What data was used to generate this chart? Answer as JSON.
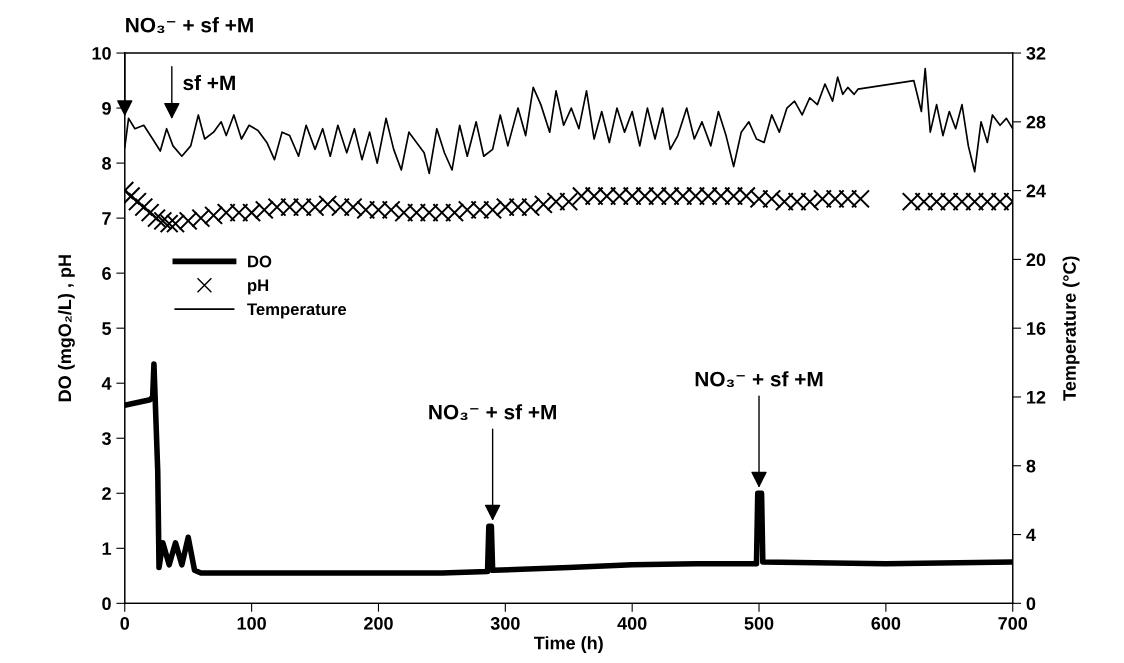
{
  "chart_data": {
    "type": "line",
    "xlabel": "Time (h)",
    "ylabel": "DO (mgO₂/L) , pH",
    "y2label": "Temperature (°C)",
    "xlim": [
      0,
      700
    ],
    "xticks": [
      0,
      100,
      200,
      300,
      400,
      500,
      600,
      700
    ],
    "ylim": [
      0,
      10
    ],
    "yticks": [
      0,
      1,
      2,
      3,
      4,
      5,
      6,
      7,
      8,
      9,
      10
    ],
    "y2lim": [
      0,
      32
    ],
    "y2ticks": [
      0,
      4,
      8,
      12,
      16,
      20,
      24,
      28,
      32
    ],
    "grid": false,
    "legend": "left",
    "series": [
      {
        "name": "DO",
        "color": "#000000",
        "x": [
          0,
          10,
          20,
          22,
          23,
          24,
          26,
          27,
          30,
          35,
          40,
          45,
          50,
          55,
          60,
          100,
          150,
          200,
          250,
          286,
          287,
          289,
          290,
          350,
          400,
          450,
          498,
          499,
          502,
          503,
          600,
          700
        ],
        "values": [
          3.6,
          3.65,
          3.7,
          3.75,
          4.35,
          3.7,
          2.4,
          0.65,
          1.1,
          0.7,
          1.1,
          0.7,
          1.2,
          0.6,
          0.55,
          0.55,
          0.55,
          0.55,
          0.55,
          0.58,
          1.4,
          1.4,
          0.6,
          0.65,
          0.7,
          0.72,
          0.72,
          2.0,
          2.0,
          0.75,
          0.72,
          0.75
        ]
      },
      {
        "name": "pH",
        "type": "scatter",
        "marker": "cross",
        "color": "#000000",
        "x": [
          0,
          5,
          10,
          15,
          20,
          25,
          30,
          35,
          40,
          50,
          60,
          70,
          80,
          90,
          100,
          110,
          120,
          130,
          140,
          150,
          160,
          170,
          180,
          190,
          200,
          210,
          220,
          230,
          240,
          250,
          260,
          270,
          280,
          290,
          300,
          310,
          320,
          330,
          340,
          350,
          360,
          370,
          380,
          390,
          400,
          410,
          420,
          430,
          440,
          450,
          460,
          470,
          480,
          490,
          500,
          510,
          520,
          530,
          540,
          550,
          560,
          570,
          580,
          620,
          630,
          640,
          650,
          660,
          670,
          680,
          690,
          700
        ],
        "values": [
          7.5,
          7.4,
          7.3,
          7.2,
          7.1,
          7.0,
          6.95,
          6.9,
          6.9,
          6.95,
          7.0,
          7.05,
          7.1,
          7.1,
          7.1,
          7.15,
          7.2,
          7.2,
          7.2,
          7.2,
          7.25,
          7.2,
          7.2,
          7.15,
          7.15,
          7.15,
          7.1,
          7.1,
          7.1,
          7.1,
          7.1,
          7.15,
          7.15,
          7.15,
          7.2,
          7.2,
          7.2,
          7.25,
          7.3,
          7.3,
          7.4,
          7.4,
          7.4,
          7.4,
          7.4,
          7.4,
          7.4,
          7.4,
          7.4,
          7.4,
          7.4,
          7.4,
          7.4,
          7.4,
          7.35,
          7.35,
          7.3,
          7.3,
          7.3,
          7.35,
          7.35,
          7.35,
          7.35,
          7.3,
          7.3,
          7.3,
          7.3,
          7.3,
          7.3,
          7.3,
          7.3,
          7.3
        ]
      },
      {
        "name": "Temperature",
        "type": "line",
        "axis": "y2",
        "color": "#000000",
        "x": [
          0,
          3,
          8,
          15,
          22,
          28,
          33,
          38,
          45,
          52,
          58,
          63,
          70,
          76,
          80,
          86,
          92,
          98,
          105,
          112,
          118,
          124,
          130,
          137,
          143,
          150,
          156,
          162,
          168,
          175,
          181,
          187,
          193,
          199,
          206,
          212,
          218,
          224,
          230,
          236,
          240,
          246,
          252,
          258,
          264,
          270,
          277,
          283,
          290,
          296,
          302,
          310,
          316,
          322,
          328,
          335,
          340,
          346,
          352,
          358,
          364,
          370,
          376,
          382,
          388,
          394,
          400,
          406,
          412,
          418,
          424,
          430,
          436,
          443,
          449,
          455,
          462,
          468,
          474,
          480,
          486,
          492,
          498,
          504,
          510,
          516,
          522,
          528,
          534,
          540,
          546,
          552,
          558,
          562,
          566,
          570,
          575,
          578,
          622,
          628,
          631,
          635,
          640,
          645,
          650,
          655,
          660,
          665,
          670,
          675,
          680,
          684,
          690,
          695,
          700
        ],
        "values": [
          26.5,
          28.2,
          27.6,
          27.8,
          27.0,
          26.3,
          27.6,
          26.6,
          26.0,
          26.6,
          28.4,
          27.0,
          27.4,
          28.0,
          27.2,
          28.4,
          27.0,
          27.8,
          27.5,
          26.8,
          25.8,
          27.4,
          27.2,
          26.0,
          27.8,
          26.4,
          27.6,
          26.0,
          27.8,
          26.2,
          27.6,
          25.8,
          27.4,
          25.6,
          28.2,
          26.4,
          25.2,
          27.4,
          26.8,
          26.2,
          25.0,
          27.6,
          26.2,
          25.2,
          27.8,
          26.0,
          28.0,
          26.0,
          26.4,
          28.4,
          26.6,
          28.8,
          27.2,
          30.0,
          29.0,
          27.4,
          29.8,
          27.8,
          28.8,
          27.6,
          29.8,
          27.0,
          28.6,
          26.8,
          28.8,
          27.4,
          28.6,
          26.6,
          28.8,
          27.0,
          28.8,
          26.4,
          27.2,
          28.8,
          27.0,
          28.0,
          26.6,
          28.6,
          27.2,
          25.4,
          27.4,
          28.0,
          27.0,
          26.8,
          28.4,
          27.4,
          28.8,
          29.2,
          28.4,
          29.4,
          29.0,
          30.2,
          29.2,
          30.6,
          29.6,
          30.0,
          29.6,
          29.9,
          30.4,
          28.6,
          31.1,
          27.4,
          29.0,
          27.2,
          28.6,
          27.6,
          29.0,
          26.6,
          25.1,
          28.0,
          26.8,
          28.4,
          27.8,
          28.2,
          27.6
        ]
      }
    ],
    "annotations": [
      "NO₃⁻ + sf +M",
      "sf +M",
      {
        "text": "NO₃⁻ + sf +M",
        "x": 290,
        "y": 1.5
      },
      {
        "text": "NO₃⁻ + sf +M",
        "x": 500,
        "y": 2.1
      }
    ]
  }
}
